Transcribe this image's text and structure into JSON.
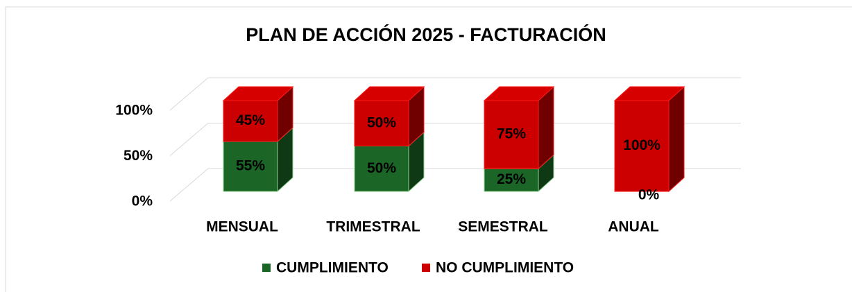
{
  "chart_data": {
    "type": "bar3d_stacked",
    "title": "PLAN DE ACCIÓN 2025 - FACTURACIÓN",
    "categories": [
      "MENSUAL",
      "TRIMESTRAL",
      "SEMESTRAL",
      "ANUAL"
    ],
    "series": [
      {
        "name": "CUMPLIMIENTO",
        "color": "#1b6526",
        "values": [
          55,
          50,
          25,
          0
        ],
        "value_labels": [
          "55%",
          "50%",
          "25%",
          "0%"
        ]
      },
      {
        "name": "NO CUMPLIMIENTO",
        "color": "#cc0000",
        "values": [
          45,
          50,
          75,
          100
        ],
        "value_labels": [
          "45%",
          "50%",
          "75%",
          "100%"
        ]
      }
    ],
    "ylim": [
      0,
      100
    ],
    "yticks": [
      {
        "value": 0,
        "label": "0%"
      },
      {
        "value": 50,
        "label": "50%"
      },
      {
        "value": 100,
        "label": "100%"
      }
    ],
    "grid": true,
    "legend": "bottom"
  }
}
